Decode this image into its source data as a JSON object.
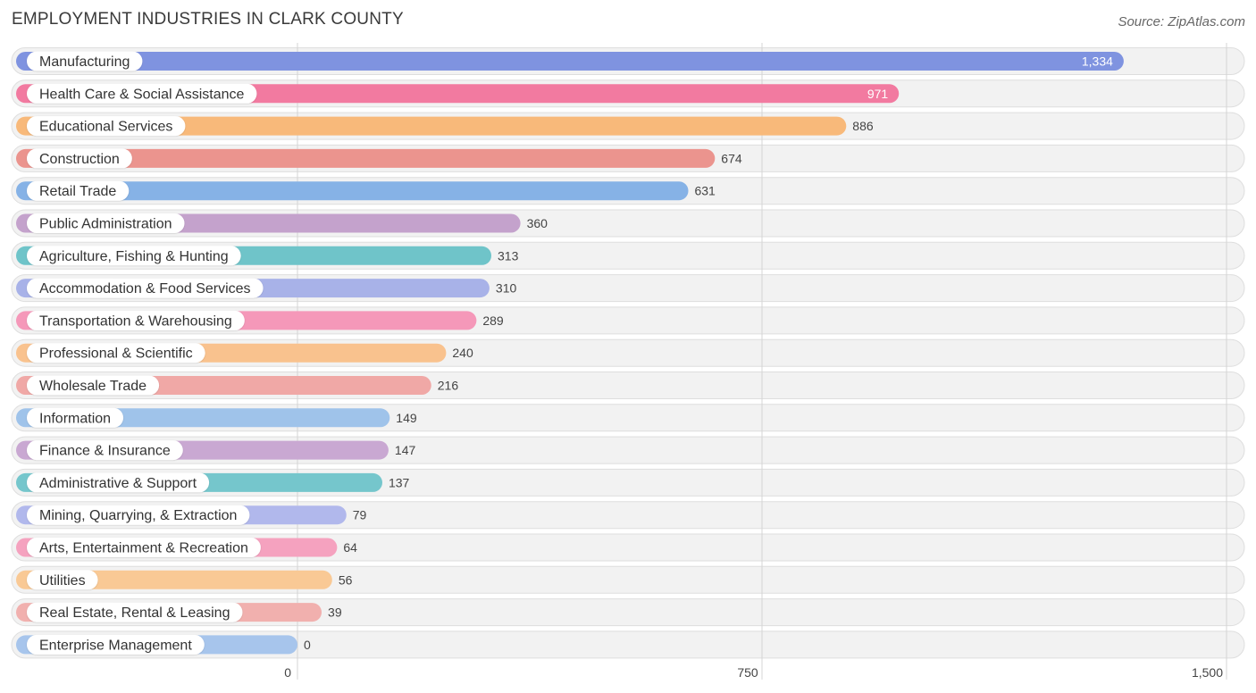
{
  "header": {
    "title": "EMPLOYMENT INDUSTRIES IN CLARK COUNTY",
    "source": "Source: ZipAtlas.com"
  },
  "chart_data": {
    "type": "bar",
    "orientation": "horizontal",
    "title": "EMPLOYMENT INDUSTRIES IN CLARK COUNTY",
    "xlabel": "",
    "ylabel": "",
    "xlim": [
      0,
      1500
    ],
    "ticks": [
      0,
      750,
      1500
    ],
    "tick_labels": [
      "0",
      "750",
      "1,500"
    ],
    "grid": true,
    "categories": [
      "Manufacturing",
      "Health Care & Social Assistance",
      "Educational Services",
      "Construction",
      "Retail Trade",
      "Public Administration",
      "Agriculture, Fishing & Hunting",
      "Accommodation & Food Services",
      "Transportation & Warehousing",
      "Professional & Scientific",
      "Wholesale Trade",
      "Information",
      "Finance & Insurance",
      "Administrative & Support",
      "Mining, Quarrying, & Extraction",
      "Arts, Entertainment & Recreation",
      "Utilities",
      "Real Estate, Rental & Leasing",
      "Enterprise Management"
    ],
    "values": [
      1334,
      971,
      886,
      674,
      631,
      360,
      313,
      310,
      289,
      240,
      216,
      149,
      147,
      137,
      79,
      64,
      56,
      39,
      0
    ],
    "value_labels": [
      "1,334",
      "971",
      "886",
      "674",
      "631",
      "360",
      "313",
      "310",
      "289",
      "240",
      "216",
      "149",
      "147",
      "137",
      "79",
      "64",
      "56",
      "39",
      "0"
    ],
    "colors": [
      "#7f93e0",
      "#f27aa0",
      "#f8b97a",
      "#eb948e",
      "#86b2e6",
      "#c4a2cc",
      "#6fc4c9",
      "#a8b2e8",
      "#f598b9",
      "#f9c28e",
      "#f0a8a6",
      "#9fc3ea",
      "#c9a8d2",
      "#75c6cc",
      "#b1b8ec",
      "#f5a2bf",
      "#f9c995",
      "#f1b0ae",
      "#a7c5ec"
    ]
  }
}
